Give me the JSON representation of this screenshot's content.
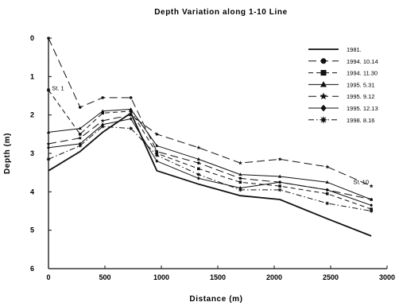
{
  "chart_data": {
    "type": "line",
    "title": "Depth Variation along 1-10 Line",
    "xlabel": "Distance (m)",
    "ylabel": "Depth (m)",
    "xlim": [
      0,
      3000
    ],
    "ylim": [
      0,
      6
    ],
    "y_inverted": true,
    "x_ticks": [
      "0",
      "500",
      "1000",
      "1500",
      "2000",
      "2500",
      "3000"
    ],
    "y_ticks": [
      "0",
      "1",
      "2",
      "3",
      "4",
      "5",
      "6"
    ],
    "grid": false,
    "legend_position": "top-right",
    "annotations": [
      {
        "text": "St. 1",
        "x": 30,
        "y": 1.35
      },
      {
        "text": "St. 10",
        "x": 2700,
        "y": 3.8
      }
    ],
    "series": [
      {
        "name": "1981.",
        "marker": "none",
        "dash": "solid",
        "width": 1.8,
        "x": [
          0,
          280,
          480,
          730,
          960,
          1330,
          1700,
          2050,
          2470,
          2860
        ],
        "y": [
          3.45,
          2.95,
          2.45,
          1.95,
          3.45,
          3.8,
          4.1,
          4.2,
          4.7,
          5.15
        ]
      },
      {
        "name": "1994. 10.14",
        "marker": "circle",
        "dash": "dash-long",
        "width": 1.0,
        "x": [
          0,
          280,
          480,
          730,
          960,
          1330,
          1700,
          2050,
          2470,
          2860
        ],
        "y": [
          0.0,
          1.8,
          1.55,
          1.55,
          2.95,
          3.25,
          3.65,
          3.75,
          3.95,
          4.2
        ]
      },
      {
        "name": "1994. 11.30",
        "marker": "square",
        "dash": "dash",
        "width": 1.0,
        "x": [
          0,
          280,
          480,
          730,
          960,
          1330,
          1700,
          2050,
          2470,
          2860
        ],
        "y": [
          1.35,
          2.5,
          1.95,
          1.9,
          3.0,
          3.4,
          3.75,
          3.85,
          4.05,
          4.45
        ]
      },
      {
        "name": "1995. 5.31",
        "marker": "triangle",
        "dash": "solid",
        "width": 1.0,
        "x": [
          0,
          280,
          480,
          730,
          960,
          1330,
          1700,
          2050,
          2470,
          2860
        ],
        "y": [
          2.45,
          2.35,
          1.9,
          1.85,
          2.8,
          3.15,
          3.55,
          3.6,
          3.75,
          4.2
        ]
      },
      {
        "name": "1995. 9.12",
        "marker": "star",
        "dash": "dash-long",
        "width": 1.0,
        "x": [
          0,
          280,
          480,
          730,
          960,
          1330,
          1700,
          2050,
          2470,
          2860
        ],
        "y": [
          2.75,
          2.6,
          2.15,
          2.0,
          2.5,
          2.85,
          3.25,
          3.15,
          3.35,
          3.85
        ]
      },
      {
        "name": "1995. 12.13",
        "marker": "diamond",
        "dash": "solid",
        "width": 1.0,
        "x": [
          0,
          280,
          480,
          730,
          960,
          1330,
          1700,
          2050,
          2470,
          2860
        ],
        "y": [
          2.85,
          2.75,
          2.25,
          2.1,
          3.2,
          3.65,
          3.9,
          3.75,
          3.95,
          4.35
        ]
      },
      {
        "name": "1998. 8.16",
        "marker": "star-burst",
        "dash": "dash-dot",
        "width": 1.0,
        "x": [
          0,
          280,
          480,
          730,
          960,
          1330,
          1700,
          2050,
          2470,
          2860
        ],
        "y": [
          3.15,
          2.8,
          2.3,
          2.35,
          3.05,
          3.55,
          3.95,
          3.95,
          4.3,
          4.5
        ]
      }
    ]
  }
}
